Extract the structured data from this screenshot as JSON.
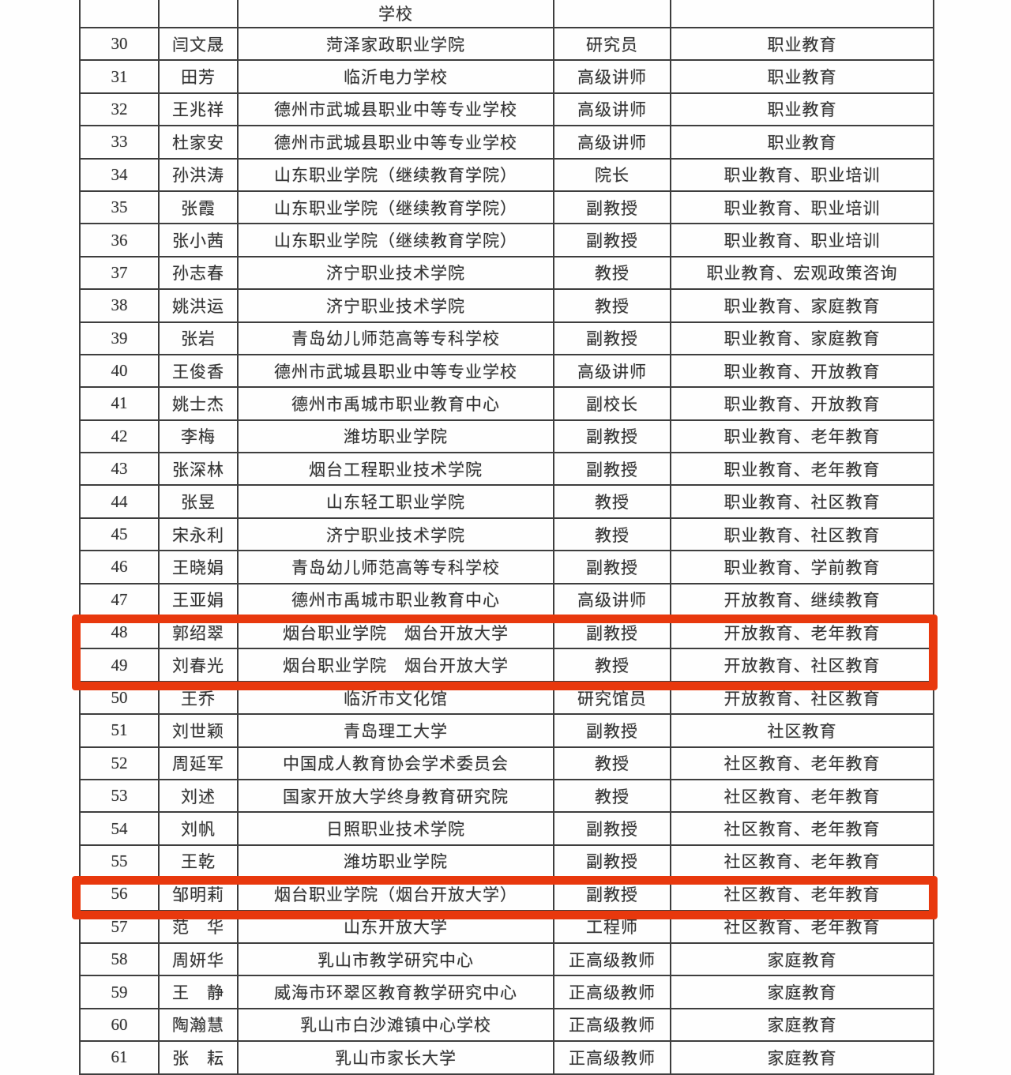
{
  "table": {
    "header": {
      "school": "学校"
    },
    "highlight_color": "#e8380d",
    "border_color": "#3e3e3e",
    "rows": [
      {
        "num": "30",
        "name": "闫文晟",
        "school": "菏泽家政职业学院",
        "title": "研究员",
        "fields": "职业教育"
      },
      {
        "num": "31",
        "name": "田芳",
        "school": "临沂电力学校",
        "title": "高级讲师",
        "fields": "职业教育"
      },
      {
        "num": "32",
        "name": "王兆祥",
        "school": "德州市武城县职业中等专业学校",
        "title": "高级讲师",
        "fields": "职业教育"
      },
      {
        "num": "33",
        "name": "杜家安",
        "school": "德州市武城县职业中等专业学校",
        "title": "高级讲师",
        "fields": "职业教育"
      },
      {
        "num": "34",
        "name": "孙洪涛",
        "school": "山东职业学院（继续教育学院）",
        "title": "院长",
        "fields": "职业教育、职业培训"
      },
      {
        "num": "35",
        "name": "张霞",
        "school": "山东职业学院（继续教育学院）",
        "title": "副教授",
        "fields": "职业教育、职业培训"
      },
      {
        "num": "36",
        "name": "张小茜",
        "school": "山东职业学院（继续教育学院）",
        "title": "副教授",
        "fields": "职业教育、职业培训"
      },
      {
        "num": "37",
        "name": "孙志春",
        "school": "济宁职业技术学院",
        "title": "教授",
        "fields": "职业教育、宏观政策咨询"
      },
      {
        "num": "38",
        "name": "姚洪运",
        "school": "济宁职业技术学院",
        "title": "教授",
        "fields": "职业教育、家庭教育"
      },
      {
        "num": "39",
        "name": "张岩",
        "school": "青岛幼儿师范高等专科学校",
        "title": "副教授",
        "fields": "职业教育、家庭教育"
      },
      {
        "num": "40",
        "name": "王俊香",
        "school": "德州市武城县职业中等专业学校",
        "title": "高级讲师",
        "fields": "职业教育、开放教育"
      },
      {
        "num": "41",
        "name": "姚士杰",
        "school": "德州市禹城市职业教育中心",
        "title": "副校长",
        "fields": "职业教育、开放教育"
      },
      {
        "num": "42",
        "name": "李梅",
        "school": "潍坊职业学院",
        "title": "副教授",
        "fields": "职业教育、老年教育"
      },
      {
        "num": "43",
        "name": "张深林",
        "school": "烟台工程职业技术学院",
        "title": "副教授",
        "fields": "职业教育、老年教育"
      },
      {
        "num": "44",
        "name": "张昱",
        "school": "山东轻工职业学院",
        "title": "教授",
        "fields": "职业教育、社区教育"
      },
      {
        "num": "45",
        "name": "宋永利",
        "school": "济宁职业技术学院",
        "title": "教授",
        "fields": "职业教育、社区教育"
      },
      {
        "num": "46",
        "name": "王晓娟",
        "school": "青岛幼儿师范高等专科学校",
        "title": "副教授",
        "fields": "职业教育、学前教育"
      },
      {
        "num": "47",
        "name": "王亚娟",
        "school": "德州市禹城市职业教育中心",
        "title": "高级讲师",
        "fields": "开放教育、继续教育"
      },
      {
        "num": "48",
        "name": "郭绍翠",
        "school": "烟台职业学院　烟台开放大学",
        "title": "副教授",
        "fields": "开放教育、老年教育"
      },
      {
        "num": "49",
        "name": "刘春光",
        "school": "烟台职业学院　烟台开放大学",
        "title": "教授",
        "fields": "开放教育、社区教育"
      },
      {
        "num": "50",
        "name": "王乔",
        "school": "临沂市文化馆",
        "title": "研究馆员",
        "fields": "开放教育、社区教育"
      },
      {
        "num": "51",
        "name": "刘世颖",
        "school": "青岛理工大学",
        "title": "副教授",
        "fields": "社区教育"
      },
      {
        "num": "52",
        "name": "周延军",
        "school": "中国成人教育协会学术委员会",
        "title": "教授",
        "fields": "社区教育、老年教育"
      },
      {
        "num": "53",
        "name": "刘述",
        "school": "国家开放大学终身教育研究院",
        "title": "教授",
        "fields": "社区教育、老年教育"
      },
      {
        "num": "54",
        "name": "刘帆",
        "school": "日照职业技术学院",
        "title": "副教授",
        "fields": "社区教育、老年教育"
      },
      {
        "num": "55",
        "name": "王乾",
        "school": "潍坊职业学院",
        "title": "副教授",
        "fields": "社区教育、老年教育"
      },
      {
        "num": "56",
        "name": "邹明莉",
        "school": "烟台职业学院（烟台开放大学）",
        "title": "副教授",
        "fields": "社区教育、老年教育"
      },
      {
        "num": "57",
        "name": "范　华",
        "school": "山东开放大学",
        "title": "工程师",
        "fields": "社区教育、老年教育"
      },
      {
        "num": "58",
        "name": "周妍华",
        "school": "乳山市教学研究中心",
        "title": "正高级教师",
        "fields": "家庭教育"
      },
      {
        "num": "59",
        "name": "王　静",
        "school": "威海市环翠区教育教学研究中心",
        "title": "正高级教师",
        "fields": "家庭教育"
      },
      {
        "num": "60",
        "name": "陶瀚慧",
        "school": "乳山市白沙滩镇中心学校",
        "title": "正高级教师",
        "fields": "家庭教育"
      },
      {
        "num": "61",
        "name": "张　耘",
        "school": "乳山市家长大学",
        "title": "正高级教师",
        "fields": "家庭教育"
      }
    ],
    "highlights": [
      {
        "from": 48,
        "to": 49
      },
      {
        "from": 56,
        "to": 56
      }
    ]
  }
}
